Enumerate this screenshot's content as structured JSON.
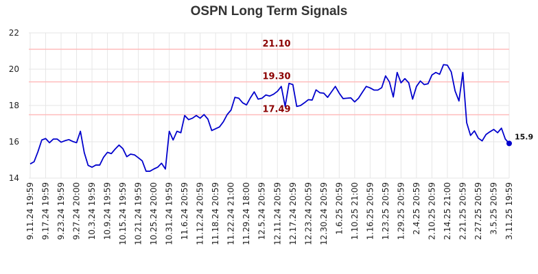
{
  "chart_data": {
    "type": "line",
    "title": "OSPN Long Term Signals",
    "xlabel": "",
    "ylabel": "",
    "ylim": [
      14,
      22
    ],
    "yticks": [
      14,
      16,
      18,
      20,
      22
    ],
    "grid": true,
    "line_color": "#0000cc",
    "x_tick_labels": [
      "9.11.24 19:59",
      "9.17.24 19:59",
      "9.23.24 19:59",
      "9.27.24 20:00",
      "10.3.24 19:59",
      "10.9.24 19:59",
      "10.15.24 19:59",
      "10.21.24 19:59",
      "10.25.24 20:00",
      "10.31.24 19:59",
      "11.6.24 20:59",
      "11.12.24 20:59",
      "11.18.24 20:59",
      "11.22.24 21:00",
      "11.29.24 18:00",
      "12.5.24 20:59",
      "12.11.24 20:59",
      "12.17.24 20:59",
      "12.23.24 20:59",
      "12.30.24 20:59",
      "1.6.25 20:59",
      "1.10.25 21:00",
      "1.16.25 20:59",
      "1.23.25 20:59",
      "1.29.25 20:59",
      "2.4.25 20:59",
      "2.10.25 20:59",
      "2.14.25 21:00",
      "2.21.25 20:59",
      "2.27.25 20:59",
      "3.5.25 20:59",
      "3.11.25 19:59"
    ],
    "reference_lines": [
      {
        "value": 21.1,
        "label": "21.10",
        "color": "#ffbbbb",
        "text_color": "#8b0000"
      },
      {
        "value": 19.3,
        "label": "19.30",
        "color": "#ffbbbb",
        "text_color": "#8b0000"
      },
      {
        "value": 17.49,
        "label": "17.49",
        "color": "#ffbbbb",
        "text_color": "#8b0000"
      }
    ],
    "last_point": {
      "value": 15.91,
      "label": "15.9",
      "color": "#0000cc"
    },
    "series": [
      {
        "values": [
          14.78,
          14.9,
          15.45,
          16.1,
          16.18,
          15.95,
          16.15,
          16.15,
          15.98,
          16.06,
          16.12,
          16.02,
          15.95,
          16.58,
          15.4,
          14.7,
          14.6,
          14.72,
          14.72,
          15.15,
          15.42,
          15.35,
          15.6,
          15.82,
          15.62,
          15.18,
          15.32,
          15.28,
          15.12,
          14.95,
          14.38,
          14.38,
          14.5,
          14.6,
          14.82,
          14.5,
          16.58,
          16.1,
          16.58,
          16.5,
          17.45,
          17.22,
          17.3,
          17.45,
          17.3,
          17.5,
          17.25,
          16.62,
          16.72,
          16.82,
          17.1,
          17.5,
          17.75,
          18.45,
          18.4,
          18.15,
          18.03,
          18.42,
          18.75,
          18.35,
          18.4,
          18.58,
          18.52,
          18.62,
          18.78,
          19.05,
          17.95,
          19.22,
          19.15,
          17.95,
          18.0,
          18.15,
          18.32,
          18.3,
          18.86,
          18.7,
          18.68,
          18.45,
          18.75,
          19.05,
          18.68,
          18.38,
          18.4,
          18.42,
          18.2,
          18.4,
          18.73,
          19.05,
          18.97,
          18.85,
          18.85,
          18.98,
          19.63,
          19.3,
          18.47,
          19.82,
          19.25,
          19.48,
          19.25,
          18.35,
          19.05,
          19.35,
          19.15,
          19.2,
          19.68,
          19.82,
          19.72,
          20.25,
          20.22,
          19.85,
          18.8,
          18.25,
          19.82,
          17.05,
          16.35,
          16.6,
          16.2,
          16.05,
          16.4,
          16.55,
          16.68,
          16.5,
          16.75,
          16.15,
          15.91
        ]
      }
    ]
  }
}
